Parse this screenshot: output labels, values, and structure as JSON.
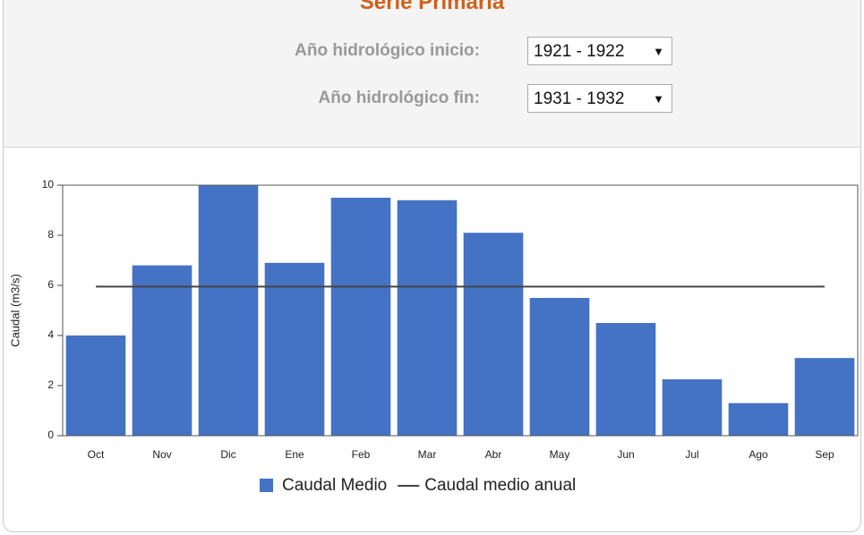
{
  "header": {
    "title": "Serie Primaria",
    "start_label": "Año hidrológico inicio:",
    "start_value": "1921 - 1922",
    "end_label": "Año hidrológico fin:",
    "end_value": "1931 - 1932"
  },
  "chart_data": {
    "type": "bar",
    "ylabel": "Caudal (m3/s)",
    "categories": [
      "Oct",
      "Nov",
      "Dic",
      "Ene",
      "Feb",
      "Mar",
      "Abr",
      "May",
      "Jun",
      "Jul",
      "Ago",
      "Sep"
    ],
    "series": [
      {
        "name": "Caudal Medio",
        "type": "bar",
        "color": "#4472c4",
        "values": [
          4.0,
          6.8,
          10.0,
          6.9,
          9.5,
          9.4,
          8.1,
          5.5,
          4.5,
          2.25,
          1.3,
          3.1
        ]
      },
      {
        "name": "Caudal medio anual",
        "type": "line",
        "color": "#444444",
        "values": [
          5.95,
          5.95,
          5.95,
          5.95,
          5.95,
          5.95,
          5.95,
          5.95,
          5.95,
          5.95,
          5.95,
          5.95
        ]
      }
    ],
    "ylim": [
      0,
      10
    ],
    "yticks": [
      0,
      2,
      4,
      6,
      8,
      10
    ],
    "legend": "bottom"
  }
}
